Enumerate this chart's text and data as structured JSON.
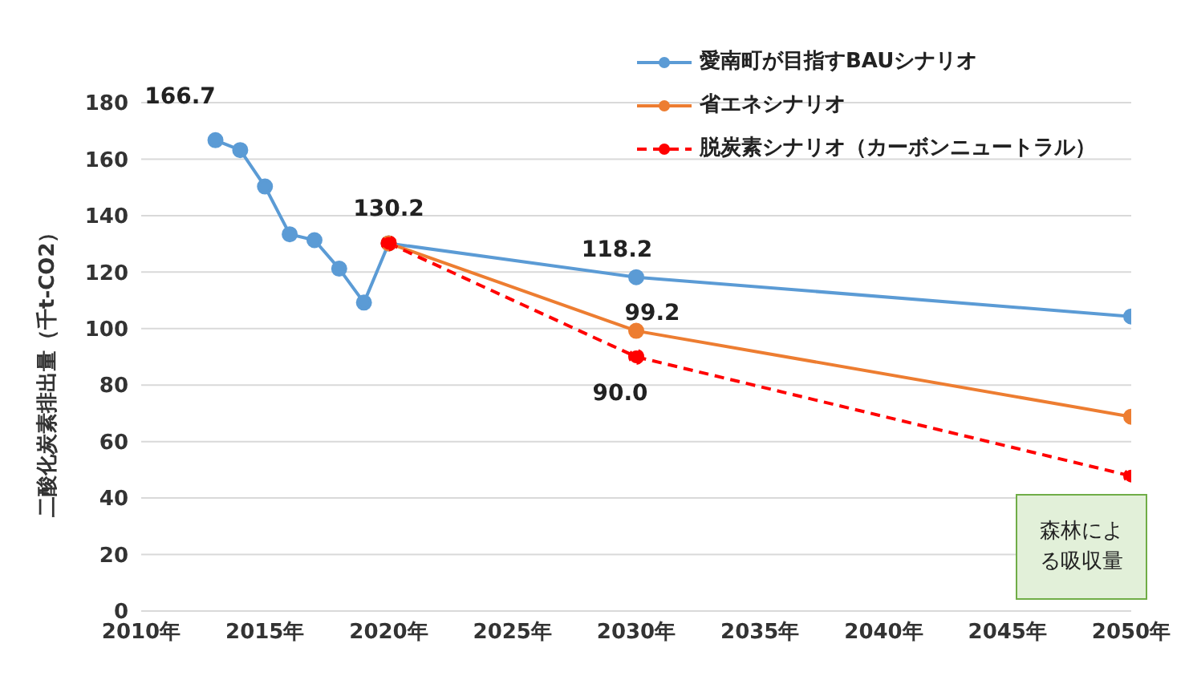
{
  "chart_data": {
    "type": "line",
    "ylabel": "二酸化炭素排出量（千t-CO2）",
    "xlim": [
      2010,
      2050
    ],
    "xticks": [
      {
        "value": 2010,
        "label": "2010年"
      },
      {
        "value": 2015,
        "label": "2015年"
      },
      {
        "value": 2020,
        "label": "2020年"
      },
      {
        "value": 2025,
        "label": "2025年"
      },
      {
        "value": 2030,
        "label": "2030年"
      },
      {
        "value": 2035,
        "label": "2035年"
      },
      {
        "value": 2040,
        "label": "2040年"
      },
      {
        "value": 2045,
        "label": "2045年"
      },
      {
        "value": 2050,
        "label": "2050年"
      }
    ],
    "ylim": [
      0,
      180
    ],
    "yticks": [
      0,
      20,
      40,
      60,
      80,
      100,
      120,
      140,
      160,
      180
    ],
    "grid": "y",
    "legend": "top right",
    "marker": "circle",
    "series": [
      {
        "name": "愛南町が目指すBAUシナリオ",
        "color": "#5b9bd5",
        "x": [
          2013,
          2014,
          2015,
          2016,
          2017,
          2018,
          2019,
          2020,
          2030,
          2050
        ],
        "values": [
          166.7,
          163.2,
          150.3,
          133.4,
          131.3,
          121.2,
          109.2,
          130.2,
          118.2,
          104.3
        ]
      },
      {
        "name": "省エネシナリオ",
        "color": "#ed7d31",
        "x": [
          2020,
          2030,
          2050
        ],
        "values": [
          130.2,
          99.2,
          68.8
        ]
      },
      {
        "name": "脱炭素シナリオ（カーボンニュートラル）",
        "color": "#ff0000",
        "line_style": "dashed",
        "x": [
          2020,
          2030,
          2050
        ],
        "values": [
          130.2,
          90.0,
          47.8
        ]
      }
    ],
    "annotations": [
      {
        "text": "166.7",
        "x": 2013,
        "y": 166.7
      },
      {
        "text": "130.2",
        "x": 2020,
        "y": 130.2
      },
      {
        "text": "118.2",
        "x": 2030,
        "y": 118.2
      },
      {
        "text": "99.2",
        "x": 2030,
        "y": 99.2
      },
      {
        "text": "90.0",
        "x": 2030,
        "y": 90.0
      },
      "森林による吸収量"
    ]
  }
}
